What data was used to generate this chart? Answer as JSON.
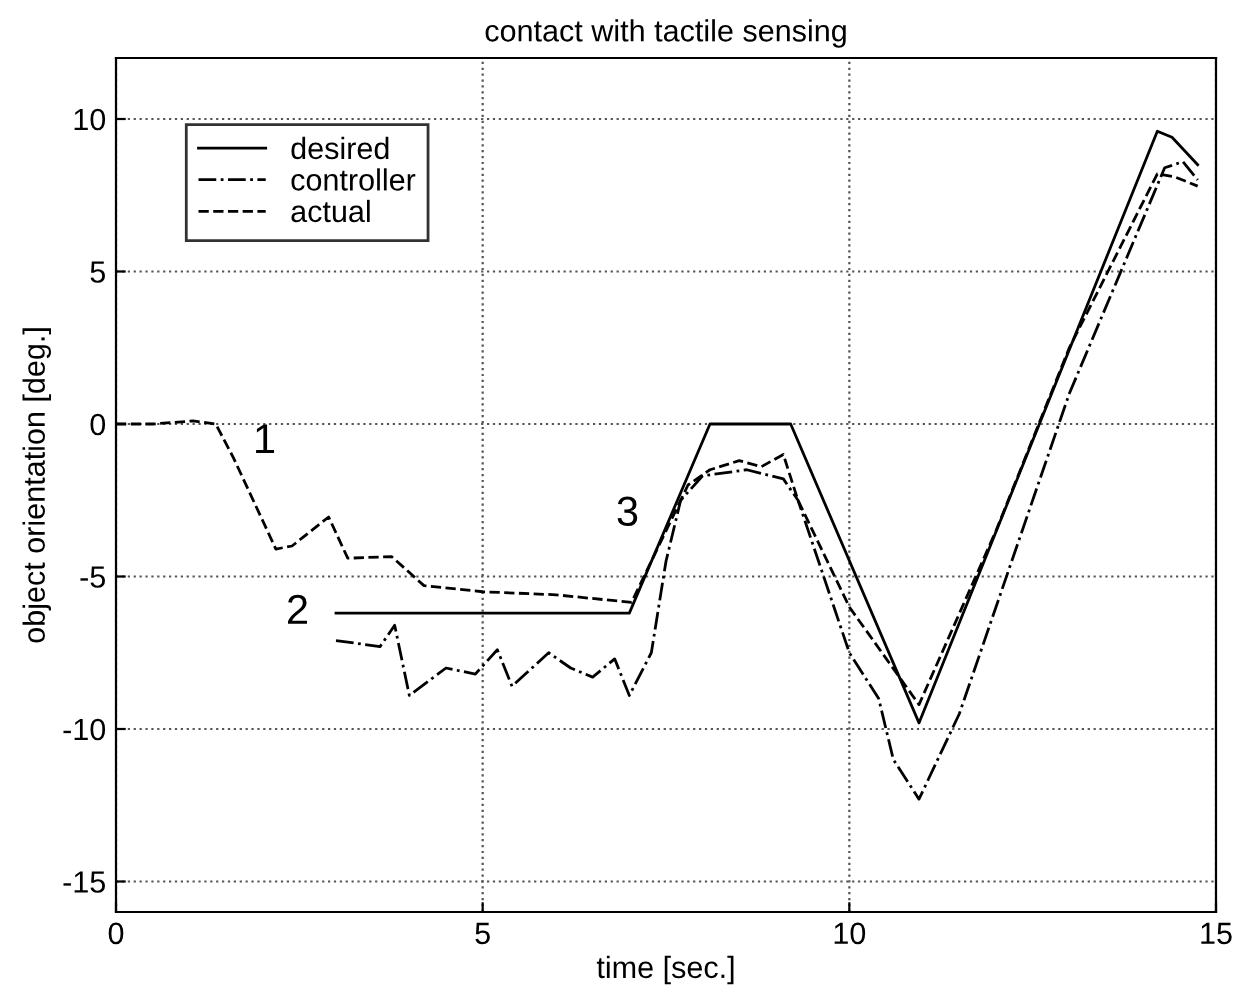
{
  "chart_data": {
    "type": "line",
    "title": "contact with tactile sensing",
    "xlabel": "time [sec.]",
    "ylabel": "object orientation [deg.]",
    "xlim": [
      0,
      15
    ],
    "ylim": [
      -16,
      12
    ],
    "xticks": [
      0,
      5,
      10,
      15
    ],
    "yticks": [
      -15,
      -10,
      -5,
      0,
      5,
      10
    ],
    "grid": true,
    "legend": "top left",
    "series": [
      {
        "name": "desired",
        "color": "#000000",
        "line_style": "solid",
        "x": [
          3,
          7,
          8.1,
          9.2,
          10.95,
          14.2,
          14.4,
          14.75
        ],
        "values": [
          -6.2,
          -6.2,
          0,
          0,
          -9.8,
          9.6,
          9.4,
          8.5
        ]
      },
      {
        "name": "controller",
        "color": "#000000",
        "line_style": "dashdot",
        "x": [
          3,
          3.3,
          3.6,
          3.8,
          4.0,
          4.5,
          4.9,
          5.2,
          5.4,
          5.9,
          6.2,
          6.5,
          6.8,
          7.0,
          7.3,
          7.5,
          7.7,
          8.0,
          8.6,
          9.1,
          9.3,
          10.0,
          10.4,
          10.6,
          10.95,
          11.5,
          12,
          13,
          14.3,
          14.55,
          14.75
        ],
        "values": [
          -7.1,
          -7.2,
          -7.3,
          -6.6,
          -8.9,
          -8.0,
          -8.2,
          -7.4,
          -8.6,
          -7.5,
          -8.0,
          -8.3,
          -7.7,
          -8.9,
          -7.5,
          -4.5,
          -2.5,
          -1.7,
          -1.5,
          -1.8,
          -2.5,
          -7.5,
          -9.0,
          -11.0,
          -12.3,
          -9.5,
          -6.0,
          1.0,
          8.4,
          8.6,
          8.0
        ]
      },
      {
        "name": "actual",
        "color": "#000000",
        "line_style": "dashed",
        "x": [
          0,
          0.5,
          1.05,
          1.36,
          1.6,
          2.18,
          2.4,
          2.9,
          3.16,
          3.76,
          4.2,
          5,
          6,
          7.03,
          7.8,
          8.1,
          8.5,
          8.8,
          9.1,
          9.3,
          10,
          10.95,
          12,
          13,
          14.2,
          14.44,
          14.75
        ],
        "values": [
          0,
          0,
          0.1,
          0,
          -1.1,
          -4.1,
          -4.0,
          -3.05,
          -4.4,
          -4.35,
          -5.3,
          -5.5,
          -5.6,
          -5.85,
          -2.0,
          -1.5,
          -1.2,
          -1.4,
          -1.0,
          -2.5,
          -6.0,
          -9.2,
          -3.5,
          2.5,
          8.2,
          8.1,
          7.8
        ]
      }
    ],
    "annotations": [
      "1",
      "2",
      "3"
    ]
  }
}
